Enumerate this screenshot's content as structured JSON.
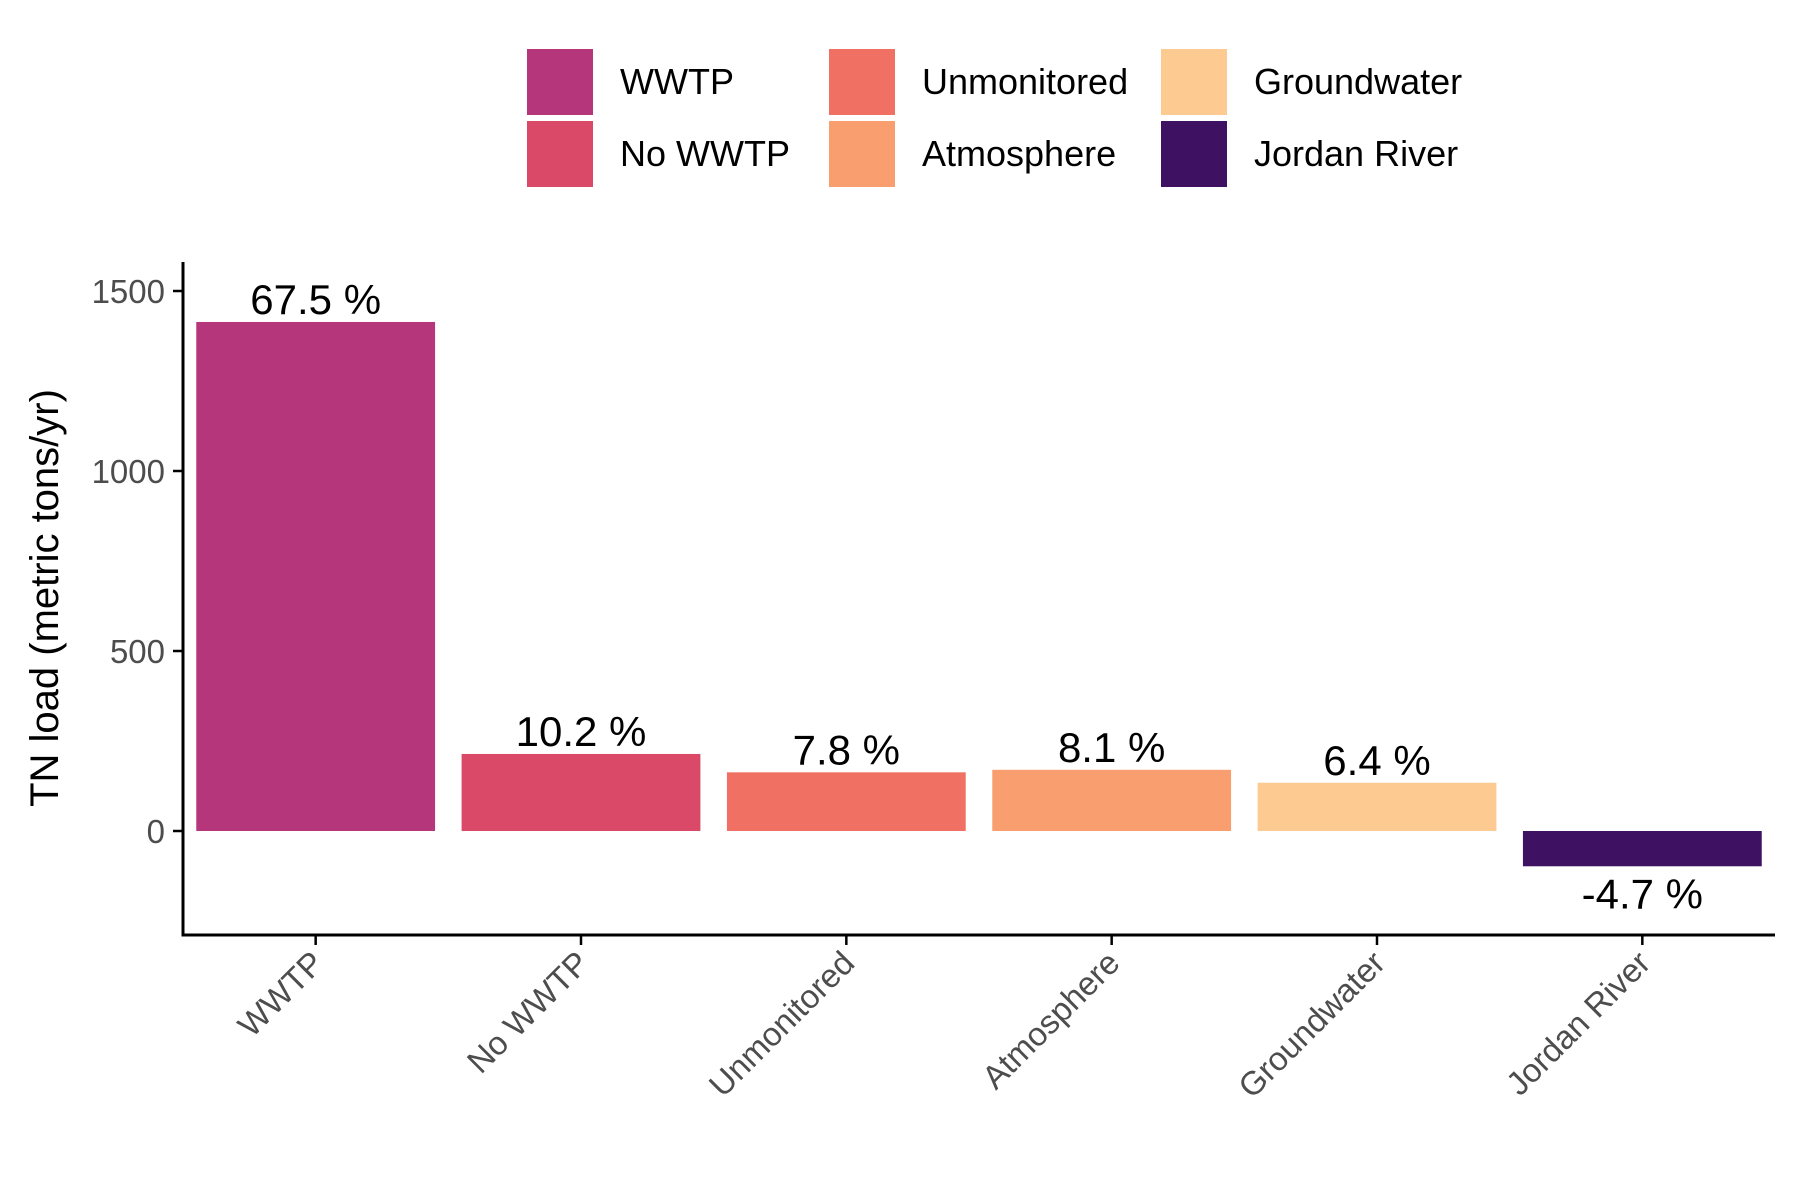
{
  "chart_data": {
    "type": "bar",
    "categories": [
      "WWTP",
      "No WWTP",
      "Unmonitored",
      "Atmosphere",
      "Groundwater",
      "Jordan River"
    ],
    "values": [
      1414,
      214,
      163,
      170,
      134,
      -98
    ],
    "data_labels": [
      "67.5 %",
      "10.2 %",
      "7.8 %",
      "8.1 %",
      "6.4 %",
      "-4.7 %"
    ],
    "colors": [
      "#B5367A",
      "#DA4A68",
      "#F07163",
      "#F89E6F",
      "#FDCA91",
      "#3E1162"
    ],
    "title": "",
    "xlabel": "",
    "ylabel": "TN load (metric tons/yr)",
    "ylim": [
      -280,
      1580
    ],
    "yticks": [
      0,
      500,
      1000,
      1500
    ],
    "ytick_labels": [
      "0",
      "500",
      "1000",
      "1500"
    ],
    "grid": false,
    "legend": {
      "position": "top",
      "columns": 3,
      "items": [
        "WWTP",
        "No WWTP",
        "Unmonitored",
        "Atmosphere",
        "Groundwater",
        "Jordan River"
      ]
    }
  }
}
